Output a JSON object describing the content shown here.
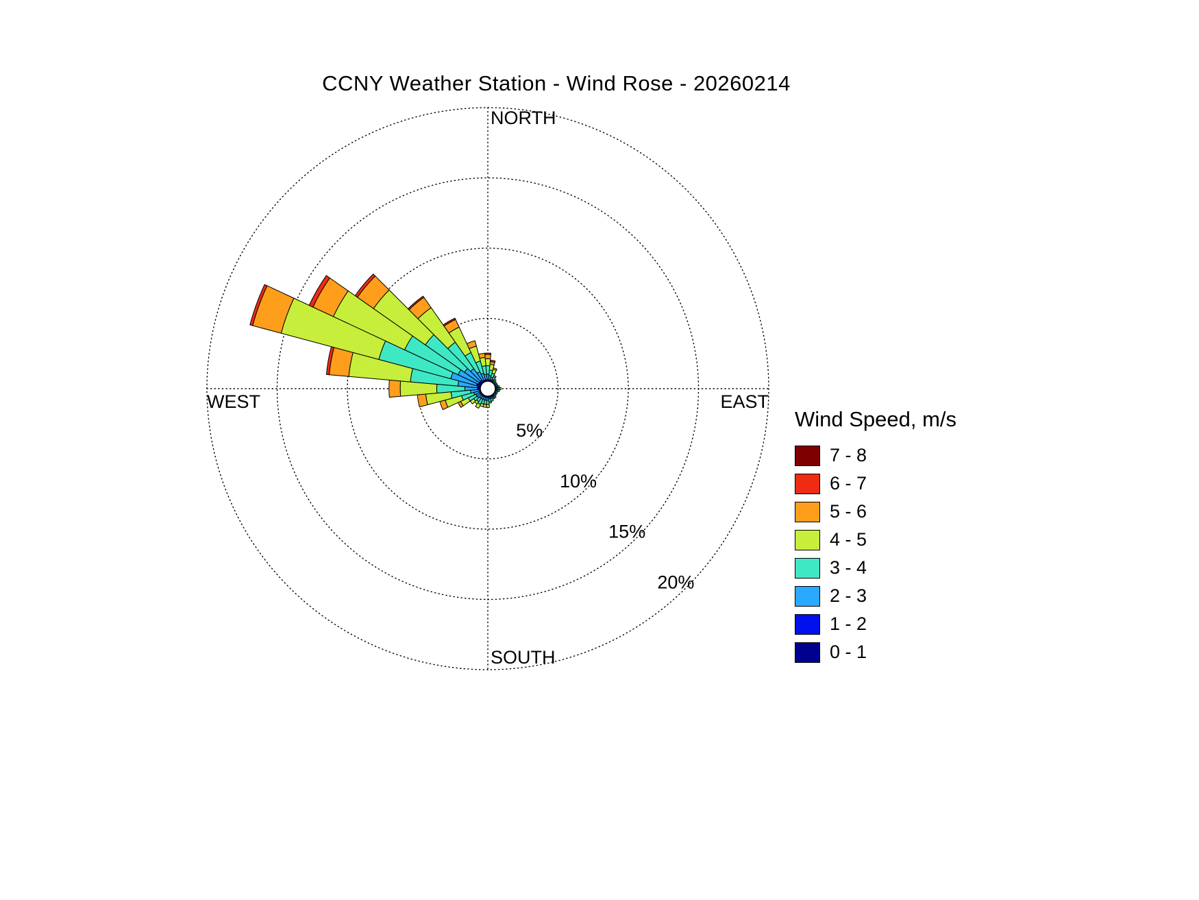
{
  "chart_data": {
    "type": "windrose",
    "title": "CCNY Weather Station - Wind Rose - 20260214",
    "legend_title": "Wind Speed, m/s",
    "compass_labels": {
      "north": "NORTH",
      "east": "EAST",
      "south": "SOUTH",
      "west": "WEST"
    },
    "ring_labels": [
      "5%",
      "10%",
      "15%",
      "20%"
    ],
    "ring_values_percent": [
      5,
      10,
      15,
      20
    ],
    "radial_max_percent": 20,
    "sector_width_deg": 10,
    "grid_style": "dotted",
    "speed_bins": [
      {
        "label": "0 - 1",
        "color": "#00008F"
      },
      {
        "label": "1 - 2",
        "color": "#0010EF"
      },
      {
        "label": "2 - 3",
        "color": "#29A9FF"
      },
      {
        "label": "3 - 4",
        "color": "#3FE8C4"
      },
      {
        "label": "4 - 5",
        "color": "#C7EE3A"
      },
      {
        "label": "5 - 6",
        "color": "#FF9E1B"
      },
      {
        "label": "6 - 7",
        "color": "#EF2B12"
      },
      {
        "label": "7 - 8",
        "color": "#7E0000"
      }
    ],
    "petals": [
      {
        "dir": 0,
        "v": [
          0,
          0.1,
          0.4,
          0.6,
          0.5,
          0.3,
          0.1,
          0
        ]
      },
      {
        "dir": 10,
        "v": [
          0,
          0.1,
          0.3,
          0.4,
          0.4,
          0.2,
          0.1,
          0
        ]
      },
      {
        "dir": 20,
        "v": [
          0,
          0.1,
          0.2,
          0.3,
          0.3,
          0.1,
          0,
          0
        ]
      },
      {
        "dir": 30,
        "v": [
          0,
          0.1,
          0.1,
          0.2,
          0.1,
          0,
          0,
          0
        ]
      },
      {
        "dir": 40,
        "v": [
          0,
          0,
          0.1,
          0.1,
          0.1,
          0,
          0,
          0
        ]
      },
      {
        "dir": 50,
        "v": [
          0,
          0,
          0.1,
          0.1,
          0,
          0,
          0,
          0
        ]
      },
      {
        "dir": 60,
        "v": [
          0,
          0,
          0.1,
          0.1,
          0,
          0,
          0,
          0
        ]
      },
      {
        "dir": 70,
        "v": [
          0,
          0,
          0.1,
          0.1,
          0,
          0,
          0,
          0
        ]
      },
      {
        "dir": 80,
        "v": [
          0,
          0.1,
          0.1,
          0.1,
          0,
          0,
          0,
          0
        ]
      },
      {
        "dir": 90,
        "v": [
          0,
          0.1,
          0.1,
          0.1,
          0.1,
          0,
          0,
          0
        ]
      },
      {
        "dir": 100,
        "v": [
          0,
          0.1,
          0.1,
          0.1,
          0,
          0,
          0,
          0
        ]
      },
      {
        "dir": 110,
        "v": [
          0,
          0,
          0.1,
          0.1,
          0,
          0,
          0,
          0
        ]
      },
      {
        "dir": 120,
        "v": [
          0,
          0,
          0.1,
          0.1,
          0,
          0,
          0,
          0
        ]
      },
      {
        "dir": 130,
        "v": [
          0,
          0,
          0.1,
          0.1,
          0,
          0,
          0,
          0
        ]
      },
      {
        "dir": 140,
        "v": [
          0,
          0.1,
          0.1,
          0.1,
          0,
          0,
          0,
          0
        ]
      },
      {
        "dir": 150,
        "v": [
          0,
          0.1,
          0.1,
          0.1,
          0,
          0,
          0,
          0
        ]
      },
      {
        "dir": 160,
        "v": [
          0,
          0.1,
          0.1,
          0.2,
          0,
          0,
          0,
          0
        ]
      },
      {
        "dir": 170,
        "v": [
          0,
          0.1,
          0.1,
          0.2,
          0.1,
          0,
          0,
          0
        ]
      },
      {
        "dir": 180,
        "v": [
          0,
          0.1,
          0.2,
          0.3,
          0.2,
          0,
          0,
          0
        ]
      },
      {
        "dir": 190,
        "v": [
          0,
          0.1,
          0.2,
          0.3,
          0.2,
          0,
          0,
          0
        ]
      },
      {
        "dir": 200,
        "v": [
          0,
          0.1,
          0.2,
          0.3,
          0.2,
          0,
          0,
          0
        ]
      },
      {
        "dir": 210,
        "v": [
          0,
          0.1,
          0.2,
          0.4,
          0.3,
          0,
          0,
          0
        ]
      },
      {
        "dir": 220,
        "v": [
          0,
          0.1,
          0.2,
          0.3,
          0.2,
          0,
          0,
          0
        ]
      },
      {
        "dir": 230,
        "v": [
          0,
          0.1,
          0.3,
          0.3,
          0.3,
          0,
          0,
          0
        ]
      },
      {
        "dir": 240,
        "v": [
          0,
          0.1,
          0.3,
          0.6,
          0.6,
          0.2,
          0,
          0
        ]
      },
      {
        "dir": 250,
        "v": [
          0,
          0.1,
          0.4,
          0.9,
          1.2,
          0.4,
          0,
          0
        ]
      },
      {
        "dir": 260,
        "v": [
          0,
          0.1,
          0.6,
          1.4,
          1.8,
          0.6,
          0,
          0
        ]
      },
      {
        "dir": 270,
        "v": [
          0,
          0.2,
          0.9,
          2.0,
          2.6,
          0.8,
          0,
          0
        ]
      },
      {
        "dir": 280,
        "v": [
          0,
          0.2,
          1.4,
          3.4,
          4.4,
          1.4,
          0.2,
          0
        ]
      },
      {
        "dir": 290,
        "v": [
          0,
          0.3,
          1.9,
          5.3,
          7.2,
          2.1,
          0.2,
          0
        ]
      },
      {
        "dir": 300,
        "v": [
          0,
          0.2,
          1.6,
          4.2,
          5.6,
          1.6,
          0.3,
          0
        ]
      },
      {
        "dir": 310,
        "v": [
          0,
          0.2,
          1.3,
          3.4,
          4.5,
          1.4,
          0.2,
          0
        ]
      },
      {
        "dir": 320,
        "v": [
          0,
          0.2,
          1.0,
          2.3,
          3.0,
          0.9,
          0.1,
          0
        ]
      },
      {
        "dir": 330,
        "v": [
          0,
          0.1,
          0.7,
          1.5,
          2.0,
          0.6,
          0.1,
          0
        ]
      },
      {
        "dir": 340,
        "v": [
          0,
          0.1,
          0.5,
          0.9,
          1.1,
          0.4,
          0,
          0
        ]
      },
      {
        "dir": 350,
        "v": [
          0,
          0.1,
          0.4,
          0.6,
          0.6,
          0.3,
          0,
          0
        ]
      }
    ]
  }
}
